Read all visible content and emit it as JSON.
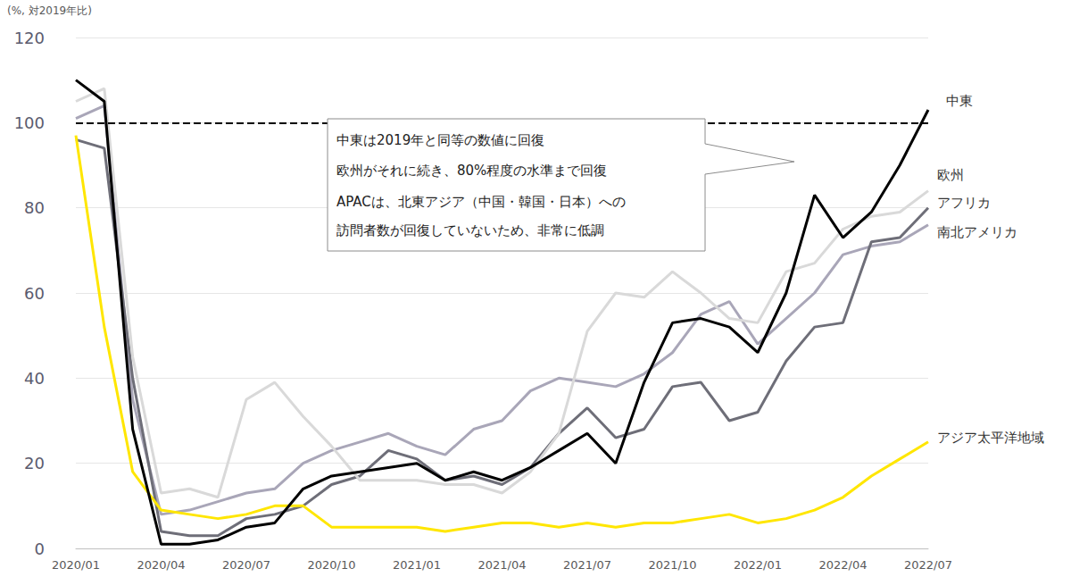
{
  "chart_data": {
    "type": "line",
    "y_label": "(%, 対2019年比)",
    "annotation": [
      "中東は2019年と同等の数値に回復",
      "欧州がそれに続き、80%程度の水準まで回復",
      "APACは、北東アジア（中国・韓国・日本）への",
      "訪問者数が回復していないため、非常に低調"
    ],
    "categories": [
      "2020/01",
      null,
      null,
      "2020/04",
      null,
      null,
      "2020/07",
      null,
      null,
      "2020/10",
      null,
      null,
      "2021/01",
      null,
      null,
      "2021/04",
      null,
      null,
      "2021/07",
      null,
      null,
      "2021/10",
      null,
      null,
      "2022/01",
      null,
      null,
      "2022/04",
      null,
      null,
      "2022/07"
    ],
    "series": [
      {
        "name": "南北アメリカ",
        "color": "#a9a6b8",
        "values": [
          101,
          104,
          35,
          8,
          9,
          11,
          13,
          14,
          20,
          23,
          25,
          27,
          24,
          22,
          28,
          30,
          37,
          40,
          39,
          38,
          41,
          46,
          55,
          58,
          48,
          54,
          60,
          69,
          71,
          72,
          76
        ]
      },
      {
        "name": "アフリカ",
        "color": "#6e6e78",
        "values": [
          96,
          94,
          40,
          4,
          3,
          3,
          7,
          8,
          10,
          15,
          17,
          23,
          21,
          16,
          17,
          15,
          19,
          27,
          33,
          26,
          28,
          38,
          39,
          30,
          32,
          44,
          52,
          53,
          72,
          73,
          80
        ]
      },
      {
        "name": "欧州",
        "color": "#d9d9d9",
        "values": [
          105,
          108,
          45,
          13,
          14,
          12,
          35,
          39,
          31,
          24,
          16,
          16,
          16,
          15,
          15,
          13,
          18,
          27,
          51,
          60,
          59,
          65,
          60,
          54,
          53,
          65,
          67,
          75,
          78,
          79,
          84
        ]
      },
      {
        "name": "アジア太平洋地域",
        "color": "#ffe600",
        "values": [
          97,
          52,
          18,
          9,
          8,
          7,
          8,
          10,
          10,
          5,
          5,
          5,
          5,
          4,
          5,
          6,
          6,
          5,
          6,
          5,
          6,
          6,
          7,
          8,
          6,
          7,
          9,
          12,
          17,
          21,
          25
        ]
      },
      {
        "name": "中東",
        "color": "#000000",
        "values": [
          110,
          105,
          28,
          1,
          1,
          2,
          5,
          6,
          14,
          17,
          18,
          19,
          20,
          16,
          18,
          16,
          19,
          23,
          27,
          20,
          39,
          53,
          54,
          52,
          46,
          60,
          83,
          73,
          79,
          90,
          103
        ]
      }
    ],
    "reference_line": {
      "value": 100,
      "line_style": "dashed"
    },
    "ylim": [
      0,
      120
    ],
    "yticks": [
      0,
      20,
      40,
      60,
      80,
      100,
      120
    ],
    "grid": true
  }
}
